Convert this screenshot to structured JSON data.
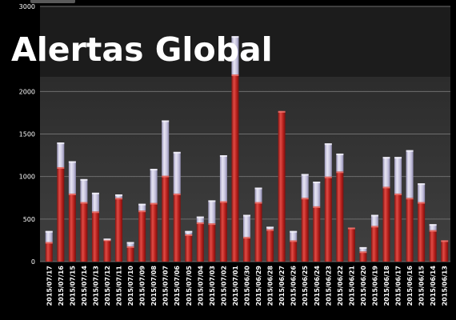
{
  "title": "Alertas Global",
  "colors": {
    "background": "#000000",
    "plot_area_top": "#1a1a1a",
    "plot_area": "#3a3a3a",
    "gridline": "#6e6e6e",
    "bar_red": "#b5201c",
    "bar_red_light": "#e04a44",
    "bar_lavender": "#c6c3dd",
    "bar_lavender_light": "#e8e6f4",
    "tick_text": "#ffffff"
  },
  "chart_data": {
    "type": "bar",
    "stacked": true,
    "title": "Alertas Global",
    "ylim": [
      0,
      3000
    ],
    "yticks": [
      0,
      500,
      1000,
      1500,
      2000,
      3000
    ],
    "grid": true,
    "categories": [
      "2015/07/17",
      "2015/07/16",
      "2015/07/15",
      "2015/07/14",
      "2015/07/13",
      "2015/07/12",
      "2015/07/11",
      "2015/07/10",
      "2015/07/09",
      "2015/07/08",
      "2015/07/07",
      "2015/07/06",
      "2015/07/05",
      "2015/07/04",
      "2015/07/03",
      "2015/07/02",
      "2015/07/01",
      "2015/06/30",
      "2015/06/29",
      "2015/06/28",
      "2015/06/27",
      "2015/06/26",
      "2015/06/25",
      "2015/06/24",
      "2015/06/23",
      "2015/06/22",
      "2015/06/21",
      "2015/06/20",
      "2015/06/19",
      "2015/06/18",
      "2015/06/17",
      "2015/06/16",
      "2015/06/15",
      "2015/06/14",
      "2015/06/13"
    ],
    "series": [
      {
        "color": "#b5201c",
        "values": [
          230,
          1110,
          800,
          700,
          590,
          260,
          750,
          180,
          600,
          690,
          1010,
          800,
          320,
          460,
          450,
          710,
          2200,
          290,
          700,
          380,
          1770,
          250,
          750,
          650,
          1000,
          1060,
          400,
          120,
          420,
          880,
          800,
          750,
          700,
          370,
          250
        ]
      },
      {
        "color": "#c6c3dd",
        "values": [
          130,
          290,
          380,
          270,
          220,
          10,
          40,
          50,
          80,
          400,
          650,
          490,
          40,
          70,
          270,
          540,
          450,
          260,
          170,
          30,
          0,
          110,
          280,
          290,
          390,
          210,
          0,
          50,
          130,
          350,
          430,
          560,
          220,
          70,
          0
        ]
      }
    ]
  }
}
